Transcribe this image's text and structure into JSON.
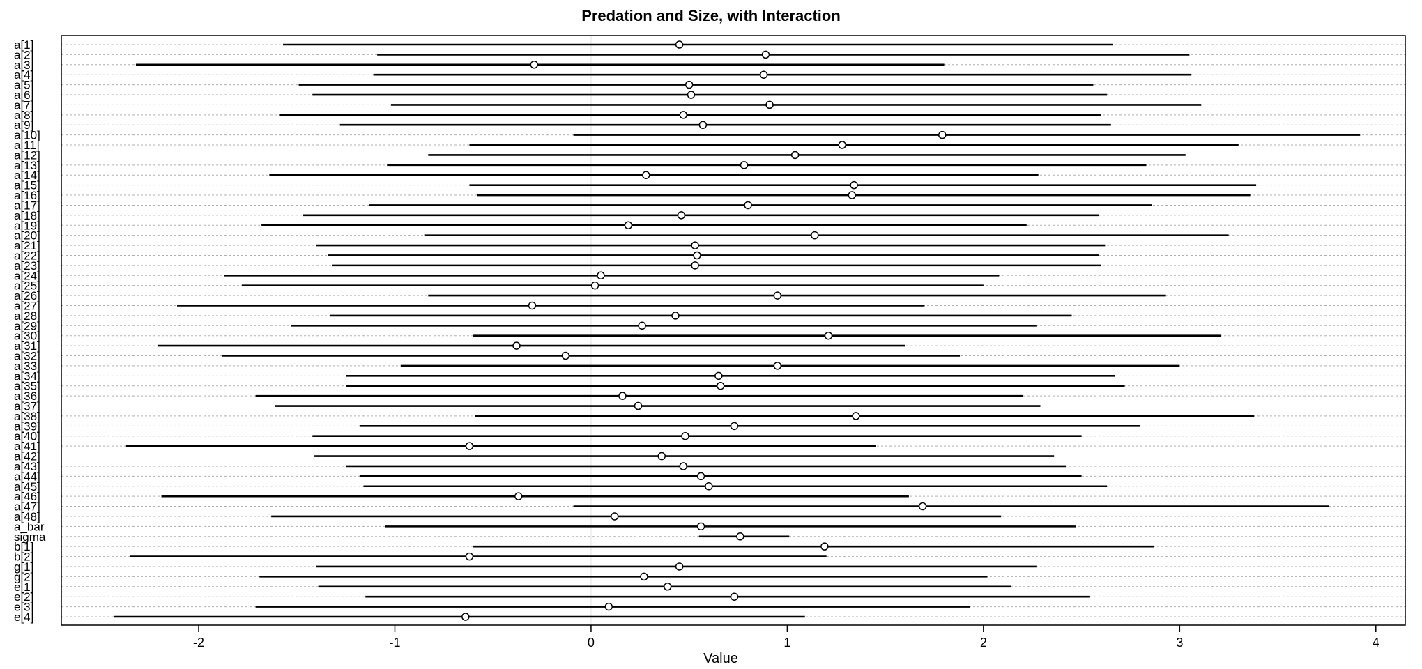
{
  "chart_data": {
    "type": "forest",
    "title": "Predation and Size, with Interaction",
    "xlabel": "Value",
    "xlim": [
      -2.7,
      4.15
    ],
    "xticks": [
      -2,
      -1,
      0,
      1,
      2,
      3,
      4
    ],
    "zero_line": true,
    "grid": "horizontal-dotted",
    "rows": [
      {
        "label": "a[1]",
        "mean": 0.45,
        "lower": -1.57,
        "upper": 2.66
      },
      {
        "label": "a[2]",
        "mean": 0.89,
        "lower": -1.09,
        "upper": 3.05
      },
      {
        "label": "a[3]",
        "mean": -0.29,
        "lower": -2.32,
        "upper": 1.8
      },
      {
        "label": "a[4]",
        "mean": 0.88,
        "lower": -1.11,
        "upper": 3.06
      },
      {
        "label": "a[5]",
        "mean": 0.5,
        "lower": -1.49,
        "upper": 2.56
      },
      {
        "label": "a[6]",
        "mean": 0.51,
        "lower": -1.42,
        "upper": 2.63
      },
      {
        "label": "a[7]",
        "mean": 0.91,
        "lower": -1.02,
        "upper": 3.11
      },
      {
        "label": "a[8]",
        "mean": 0.47,
        "lower": -1.59,
        "upper": 2.6
      },
      {
        "label": "a[9]",
        "mean": 0.57,
        "lower": -1.28,
        "upper": 2.65
      },
      {
        "label": "a[10]",
        "mean": 1.79,
        "lower": -0.09,
        "upper": 3.92
      },
      {
        "label": "a[11]",
        "mean": 1.28,
        "lower": -0.62,
        "upper": 3.3
      },
      {
        "label": "a[12]",
        "mean": 1.04,
        "lower": -0.83,
        "upper": 3.03
      },
      {
        "label": "a[13]",
        "mean": 0.78,
        "lower": -1.04,
        "upper": 2.83
      },
      {
        "label": "a[14]",
        "mean": 0.28,
        "lower": -1.64,
        "upper": 2.28
      },
      {
        "label": "a[15]",
        "mean": 1.34,
        "lower": -0.62,
        "upper": 3.39
      },
      {
        "label": "a[16]",
        "mean": 1.33,
        "lower": -0.58,
        "upper": 3.36
      },
      {
        "label": "a[17]",
        "mean": 0.8,
        "lower": -1.13,
        "upper": 2.86
      },
      {
        "label": "a[18]",
        "mean": 0.46,
        "lower": -1.47,
        "upper": 2.59
      },
      {
        "label": "a[19]",
        "mean": 0.19,
        "lower": -1.68,
        "upper": 2.22
      },
      {
        "label": "a[20]",
        "mean": 1.14,
        "lower": -0.85,
        "upper": 3.25
      },
      {
        "label": "a[21]",
        "mean": 0.53,
        "lower": -1.4,
        "upper": 2.62
      },
      {
        "label": "a[22]",
        "mean": 0.54,
        "lower": -1.34,
        "upper": 2.59
      },
      {
        "label": "a[23]",
        "mean": 0.53,
        "lower": -1.32,
        "upper": 2.6
      },
      {
        "label": "a[24]",
        "mean": 0.05,
        "lower": -1.87,
        "upper": 2.08
      },
      {
        "label": "a[25]",
        "mean": 0.02,
        "lower": -1.78,
        "upper": 2.0
      },
      {
        "label": "a[26]",
        "mean": 0.95,
        "lower": -0.83,
        "upper": 2.93
      },
      {
        "label": "a[27]",
        "mean": -0.3,
        "lower": -2.11,
        "upper": 1.7
      },
      {
        "label": "a[28]",
        "mean": 0.43,
        "lower": -1.33,
        "upper": 2.45
      },
      {
        "label": "a[29]",
        "mean": 0.26,
        "lower": -1.53,
        "upper": 2.27
      },
      {
        "label": "a[30]",
        "mean": 1.21,
        "lower": -0.6,
        "upper": 3.21
      },
      {
        "label": "a[31]",
        "mean": -0.38,
        "lower": -2.21,
        "upper": 1.6
      },
      {
        "label": "a[32]",
        "mean": -0.13,
        "lower": -1.88,
        "upper": 1.88
      },
      {
        "label": "a[33]",
        "mean": 0.95,
        "lower": -0.97,
        "upper": 3.0
      },
      {
        "label": "a[34]",
        "mean": 0.65,
        "lower": -1.25,
        "upper": 2.67
      },
      {
        "label": "a[35]",
        "mean": 0.66,
        "lower": -1.25,
        "upper": 2.72
      },
      {
        "label": "a[36]",
        "mean": 0.16,
        "lower": -1.71,
        "upper": 2.2
      },
      {
        "label": "a[37]",
        "mean": 0.24,
        "lower": -1.61,
        "upper": 2.29
      },
      {
        "label": "a[38]",
        "mean": 1.35,
        "lower": -0.59,
        "upper": 3.38
      },
      {
        "label": "a[39]",
        "mean": 0.73,
        "lower": -1.18,
        "upper": 2.8
      },
      {
        "label": "a[40]",
        "mean": 0.48,
        "lower": -1.42,
        "upper": 2.5
      },
      {
        "label": "a[41]",
        "mean": -0.62,
        "lower": -2.37,
        "upper": 1.45
      },
      {
        "label": "a[42]",
        "mean": 0.36,
        "lower": -1.41,
        "upper": 2.36
      },
      {
        "label": "a[43]",
        "mean": 0.47,
        "lower": -1.25,
        "upper": 2.42
      },
      {
        "label": "a[44]",
        "mean": 0.56,
        "lower": -1.18,
        "upper": 2.5
      },
      {
        "label": "a[45]",
        "mean": 0.6,
        "lower": -1.16,
        "upper": 2.63
      },
      {
        "label": "a[46]",
        "mean": -0.37,
        "lower": -2.19,
        "upper": 1.62
      },
      {
        "label": "a[47]",
        "mean": 1.69,
        "lower": -0.09,
        "upper": 3.76
      },
      {
        "label": "a[48]",
        "mean": 0.12,
        "lower": -1.63,
        "upper": 2.09
      },
      {
        "label": "a_bar",
        "mean": 0.56,
        "lower": -1.05,
        "upper": 2.47
      },
      {
        "label": "sigma",
        "mean": 0.76,
        "lower": 0.55,
        "upper": 1.01
      },
      {
        "label": "b[1]",
        "mean": 1.19,
        "lower": -0.6,
        "upper": 2.87
      },
      {
        "label": "b[2]",
        "mean": -0.62,
        "lower": -2.35,
        "upper": 1.2
      },
      {
        "label": "g[1]",
        "mean": 0.45,
        "lower": -1.4,
        "upper": 2.27
      },
      {
        "label": "g[2]",
        "mean": 0.27,
        "lower": -1.69,
        "upper": 2.02
      },
      {
        "label": "e[1]",
        "mean": 0.39,
        "lower": -1.39,
        "upper": 2.14
      },
      {
        "label": "e[2]",
        "mean": 0.73,
        "lower": -1.15,
        "upper": 2.54
      },
      {
        "label": "e[3]",
        "mean": 0.09,
        "lower": -1.71,
        "upper": 1.93
      },
      {
        "label": "e[4]",
        "mean": -0.64,
        "lower": -2.43,
        "upper": 1.09
      }
    ]
  }
}
